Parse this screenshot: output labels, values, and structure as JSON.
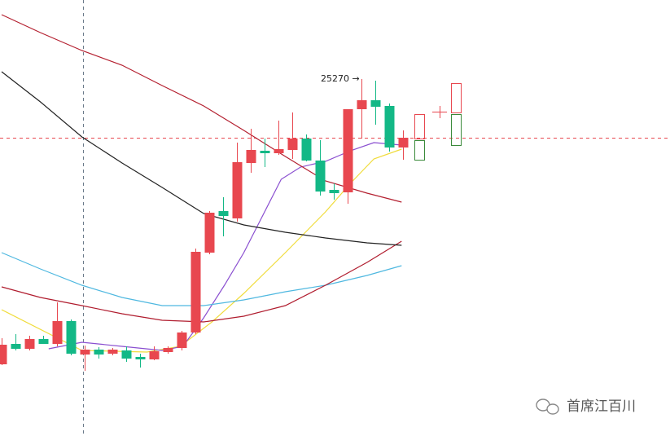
{
  "chart_data": {
    "type": "candlestick",
    "xlim": [
      -0.118,
      48.29
    ],
    "ylim": [
      24832,
      25367
    ],
    "up_color": "#e8474f",
    "down_color": "#13b886",
    "candles": {
      "x": [
        0,
        1,
        2,
        3,
        4,
        5,
        6,
        7,
        8,
        9,
        10,
        11,
        12,
        13,
        14,
        15,
        16,
        17,
        18,
        19,
        20,
        21,
        22,
        23,
        24,
        25,
        26,
        27,
        28,
        29
      ],
      "open": [
        24920,
        24945,
        24939,
        24951,
        24945,
        24973,
        24932,
        24938,
        24933,
        24937,
        24929,
        24926,
        24935,
        24940,
        24959,
        25057,
        25108,
        25099,
        25167,
        25182,
        25179,
        25183,
        25197,
        25170,
        25134,
        25131,
        25233,
        25244,
        25237,
        25186
      ],
      "high": [
        24952,
        24957,
        24955,
        24955,
        24996,
        24975,
        24943,
        24941,
        24940,
        24942,
        24933,
        24942,
        24942,
        24961,
        25062,
        25108,
        25125,
        25192,
        25209,
        25197,
        25219,
        25229,
        25202,
        25195,
        25142,
        25233,
        25270,
        25268,
        25240,
        25207
      ],
      "low": [
        24919,
        24937,
        24937,
        24945,
        24942,
        24931,
        24912,
        24927,
        24931,
        24923,
        24916,
        24925,
        24933,
        24937,
        24957,
        25055,
        25077,
        25095,
        25155,
        25162,
        25177,
        25172,
        25169,
        25127,
        25122,
        25117,
        25197,
        25214,
        25181,
        25171
      ],
      "close": [
        24944,
        24939,
        24951,
        24945,
        24973,
        24933,
        24938,
        24932,
        24938,
        24927,
        24926,
        24936,
        24940,
        24959,
        25058,
        25106,
        25102,
        25168,
        25183,
        25179,
        25184,
        25197,
        25170,
        25132,
        25130,
        25233,
        25244,
        25236,
        25186,
        25198
      ]
    },
    "lines": [
      {
        "color": "#f0dc3c",
        "x": [
          0,
          5.8,
          10.5,
          12.9,
          15.2,
          17.5,
          20.5,
          23.4,
          25.2,
          26.9,
          28.9
        ],
        "values": [
          24987,
          24937,
          24935,
          24942,
          24972,
          25007,
          25057,
          25107,
          25142,
          25172,
          25184
        ]
      },
      {
        "color": "#8a4fd0",
        "x": [
          3.4,
          5.8,
          8.7,
          11.6,
          13.1,
          14.6,
          16.1,
          17.5,
          18.7,
          20.2,
          21.6,
          23.4,
          25.2,
          26.9,
          28.9
        ],
        "values": [
          24939,
          24947,
          24942,
          24937,
          24942,
          24977,
          25017,
          25057,
          25097,
          25147,
          25162,
          25169,
          25182,
          25192,
          25189
        ]
      },
      {
        "color": "#4fb8e0",
        "x": [
          0,
          2.8,
          5.8,
          8.7,
          11.6,
          14.6,
          17.5,
          20.5,
          23.4,
          26.4,
          28.9
        ],
        "values": [
          25057,
          25037,
          25017,
          25002,
          24992,
          24992,
          24999,
          25009,
          25017,
          25029,
          25041
        ]
      },
      {
        "color": "#b01c2e",
        "x": [
          0,
          2.8,
          5.8,
          8.7,
          11.6,
          14.6,
          17.5,
          20.5,
          23.4,
          26.4,
          28.9
        ],
        "values": [
          25015,
          25002,
          24992,
          24982,
          24974,
          24972,
          24979,
          24992,
          25017,
          25045,
          25071
        ]
      },
      {
        "color": "#222222",
        "x": [
          0,
          2.8,
          5.8,
          8.7,
          11.6,
          14.6,
          17.5,
          20.5,
          23.4,
          26.4,
          28.9
        ],
        "values": [
          25279,
          25242,
          25199,
          25167,
          25137,
          25105,
          25091,
          25082,
          25075,
          25069,
          25066
        ]
      },
      {
        "color": "#b42030",
        "x": [
          0,
          2.8,
          5.8,
          8.7,
          11.6,
          14.6,
          17.5,
          20.5,
          23.4,
          26.4,
          28.9
        ],
        "values": [
          25349,
          25327,
          25305,
          25287,
          25262,
          25237,
          25207,
          25175,
          25145,
          25130,
          25119
        ]
      }
    ],
    "annotation": "25270 →",
    "watermark": "首席江百川"
  }
}
